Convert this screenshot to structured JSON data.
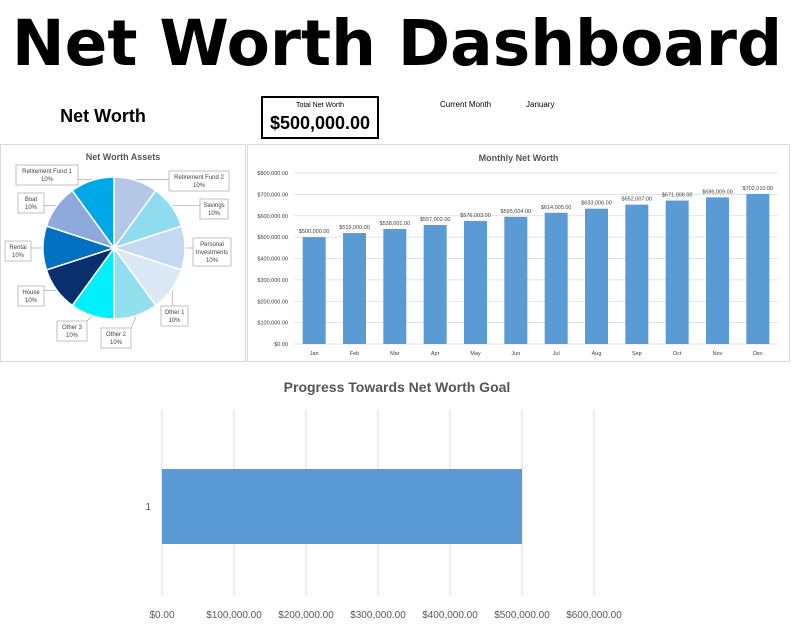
{
  "header": {
    "title": "Net Worth Dashboard",
    "net_worth_heading": "Net Worth",
    "total_net_worth_label": "Total Net Worth",
    "total_net_worth_value": "$500,000.00",
    "current_month_label": "Current Month",
    "current_month_value": "January"
  },
  "colors": {
    "bar": "#5b9bd5",
    "grid": "#d9d9d9",
    "panel_title": "#595959",
    "axis_text": "#595959"
  },
  "chart_data": [
    {
      "type": "pie",
      "title": "Net Worth Assets",
      "slices": [
        {
          "label": "Retirement Fund 2",
          "value": 10,
          "pct": "10%",
          "color": "#b4c7e7"
        },
        {
          "label": "Savings",
          "value": 10,
          "pct": "10%",
          "color": "#8fdcf0"
        },
        {
          "label": "Personal Investments",
          "value": 10,
          "pct": "10%",
          "color": "#c5d9f1"
        },
        {
          "label": "Other 1",
          "value": 10,
          "pct": "10%",
          "color": "#dbe8f6"
        },
        {
          "label": "Other 2",
          "value": 10,
          "pct": "10%",
          "color": "#92dff0"
        },
        {
          "label": "Other 3",
          "value": 10,
          "pct": "10%",
          "color": "#00f0ff"
        },
        {
          "label": "House",
          "value": 10,
          "pct": "10%",
          "color": "#0a2f6e"
        },
        {
          "label": "Rental",
          "value": 10,
          "pct": "10%",
          "color": "#0070c0"
        },
        {
          "label": "Boat",
          "value": 10,
          "pct": "10%",
          "color": "#8ea9db"
        },
        {
          "label": "Retirement Fund 1",
          "value": 10,
          "pct": "10%",
          "color": "#00a8e8"
        }
      ]
    },
    {
      "type": "bar",
      "title": "Monthly Net Worth",
      "categories": [
        "Jan",
        "Feb",
        "Mar",
        "Apr",
        "May",
        "Jun",
        "Jul",
        "Aug",
        "Sep",
        "Oct",
        "Nov",
        "Dec"
      ],
      "values": [
        500000,
        519000,
        538001,
        557002,
        576003,
        595004,
        614005,
        633006,
        652007,
        671008,
        686009,
        702010
      ],
      "data_labels": [
        "$500,000.00",
        "$519,000.00",
        "$538,001.00",
        "$557,002.00",
        "$576,003.00",
        "$595,004.00",
        "$614,005.00",
        "$633,006.00",
        "$652,007.00",
        "$671,008.00",
        "$686,009.00",
        "$702,010.00"
      ],
      "yticks": [
        0,
        100000,
        200000,
        300000,
        400000,
        500000,
        600000,
        700000,
        800000
      ],
      "ytick_labels": [
        "$0.00",
        "$100,000.00",
        "$200,000.00",
        "$300,000.00",
        "$400,000.00",
        "$500,000.00",
        "$600,000.00",
        "$700,000.00",
        "$800,000.00"
      ],
      "ylim": [
        0,
        800000
      ],
      "grid": true
    },
    {
      "type": "bar",
      "orientation": "horizontal",
      "title": "Progress Towards Net Worth Goal",
      "categories": [
        "1"
      ],
      "values": [
        500000
      ],
      "xticks": [
        0,
        100000,
        200000,
        300000,
        400000,
        500000,
        600000
      ],
      "xtick_labels": [
        "$0.00",
        "$100,000.00",
        "$200,000.00",
        "$300,000.00",
        "$400,000.00",
        "$500,000.00",
        "$600,000.00"
      ],
      "xlim": [
        0,
        600000
      ],
      "grid": true
    }
  ]
}
